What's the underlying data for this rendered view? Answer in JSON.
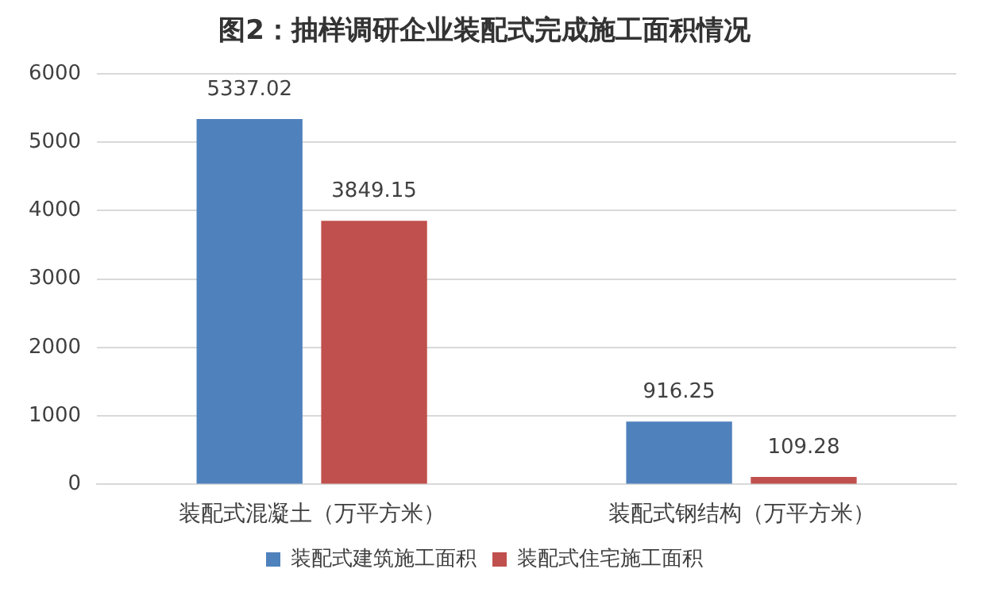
{
  "chart_data": {
    "type": "bar",
    "title": "图2：抽样调研企业装配式完成施工面积情况",
    "categories": [
      "装配式混凝土（万平方米）",
      "装配式钢结构（万平方米）"
    ],
    "series": [
      {
        "name": "装配式建筑施工面积",
        "color": "#4f81bd",
        "values": [
          5337.02,
          916.25
        ]
      },
      {
        "name": "装配式住宅施工面积",
        "color": "#c0504d",
        "values": [
          3849.15,
          109.28
        ]
      }
    ],
    "ylim": [
      0,
      6000
    ],
    "yticks": [
      0,
      1000,
      2000,
      3000,
      4000,
      5000,
      6000
    ],
    "grid": "y",
    "legend": "bottom",
    "data_labels": true
  }
}
